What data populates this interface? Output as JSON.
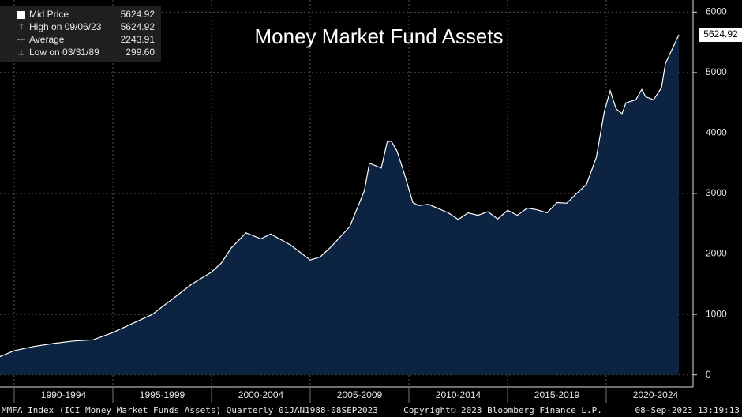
{
  "chart_data": {
    "type": "area",
    "title": "Money Market Fund Assets",
    "stats": [
      {
        "label": "Mid Price",
        "value": 5624.92
      },
      {
        "label": "High on 09/06/23",
        "value": 5624.92
      },
      {
        "label": "Average",
        "value": 2243.91
      },
      {
        "label": "Low on 03/31/89",
        "value": 299.6,
        "value_label": "299.60"
      }
    ],
    "footer": {
      "left": "MMFA Index (ICI Money Market Funds Assets)  Quarterly 01JAN1988-08SEP2023",
      "center": "Copyright© 2023 Bloomberg Finance L.P.",
      "right": "08-Sep-2023 13:19:13"
    },
    "x": [
      1989.25,
      1990,
      1991,
      1992,
      1993,
      1994,
      1995,
      1996,
      1997,
      1998,
      1999,
      2000,
      2000.5,
      2001,
      2001.75,
      2002.5,
      2003,
      2004,
      2005,
      2005.5,
      2006,
      2007,
      2007.75,
      2008,
      2008.6,
      2008.9,
      2009.1,
      2009.4,
      2009.75,
      2010.2,
      2010.5,
      2011,
      2012,
      2012.5,
      2013,
      2013.5,
      2014,
      2014.5,
      2015,
      2015.5,
      2016,
      2016.5,
      2017,
      2017.5,
      2018,
      2018.5,
      2019,
      2019.5,
      2019.9,
      2020.2,
      2020.5,
      2020.8,
      2021,
      2021.5,
      2021.8,
      2022,
      2022.4,
      2022.8,
      2023,
      2023.68
    ],
    "series": [
      {
        "name": "Mid Price",
        "color": "#ffffff",
        "fill": "#0c2341",
        "values": [
          300,
          400,
          470,
          520,
          560,
          580,
          700,
          850,
          1000,
          1250,
          1500,
          1700,
          1850,
          2100,
          2350,
          2250,
          2330,
          2150,
          1900,
          1950,
          2100,
          2450,
          3050,
          3500,
          3420,
          3850,
          3870,
          3700,
          3350,
          2850,
          2800,
          2820,
          2680,
          2570,
          2680,
          2640,
          2700,
          2580,
          2720,
          2640,
          2760,
          2730,
          2680,
          2850,
          2840,
          3000,
          3150,
          3600,
          4350,
          4700,
          4400,
          4320,
          4500,
          4550,
          4720,
          4600,
          4550,
          4750,
          5150,
          5624.92
        ]
      }
    ],
    "xlim": [
      1989.28,
      2024.4
    ],
    "ylim": [
      -200,
      6200
    ],
    "yticks": [
      0,
      1000,
      2000,
      3000,
      4000,
      5000,
      6000
    ],
    "xticks": [
      {
        "value": 1992.5,
        "label": "1990-1994"
      },
      {
        "value": 1997.5,
        "label": "1995-1999"
      },
      {
        "value": 2002.5,
        "label": "2000-2004"
      },
      {
        "value": 2007.5,
        "label": "2005-2009"
      },
      {
        "value": 2012.5,
        "label": "2010-2014"
      },
      {
        "value": 2017.5,
        "label": "2015-2019"
      },
      {
        "value": 2022.5,
        "label": "2020-2024"
      }
    ],
    "xgrid": [
      1990,
      1995,
      2000,
      2005,
      2010,
      2015,
      2020
    ],
    "grid": true
  }
}
